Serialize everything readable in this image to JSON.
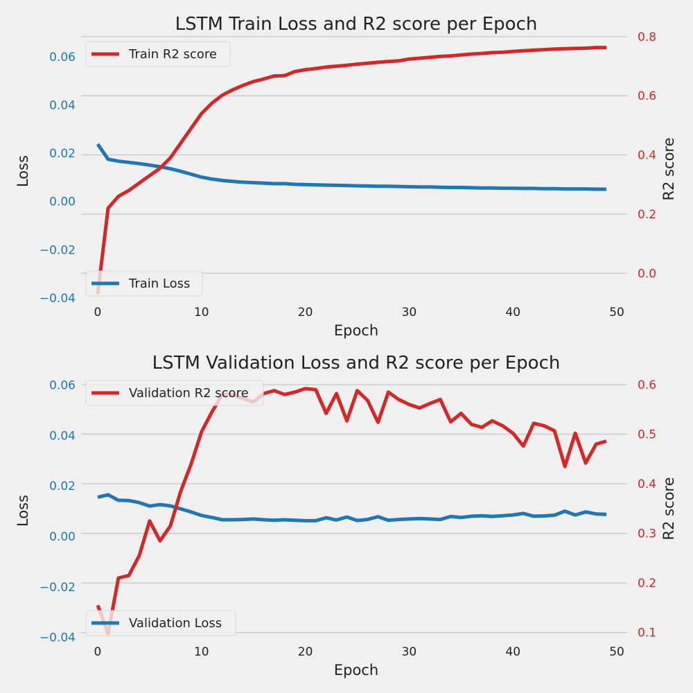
{
  "colors": {
    "background": "#f0f0f0",
    "grid": "#cbcbcb",
    "loss": "#1f77b4",
    "r2": "#d62728",
    "text": "#222222"
  },
  "chart_data": [
    {
      "type": "line",
      "title": "LSTM Train Loss and R2 score per Epoch",
      "xlabel": "Epoch",
      "ylabel_left": "Loss",
      "ylabel_right": "R2 score",
      "xlim": [
        -1.6,
        51
      ],
      "ylim_left": [
        -0.042,
        0.072
      ],
      "ylim_right": [
        -0.1,
        0.83
      ],
      "x_ticks": [
        0,
        10,
        20,
        30,
        40,
        50
      ],
      "y_ticks_left": [
        -0.04,
        -0.02,
        0.0,
        0.02,
        0.04,
        0.06
      ],
      "y_ticks_left_labels": [
        "−0.04",
        "−0.02",
        "0.00",
        "0.02",
        "0.04",
        "0.06"
      ],
      "y_ticks_right": [
        0.0,
        0.2,
        0.4,
        0.6,
        0.8
      ],
      "y_ticks_right_labels": [
        "0.0",
        "0.2",
        "0.4",
        "0.6",
        "0.8"
      ],
      "grid": "right-axis",
      "x": [
        0,
        1,
        2,
        3,
        4,
        5,
        6,
        7,
        8,
        9,
        10,
        11,
        12,
        13,
        14,
        15,
        16,
        17,
        18,
        19,
        20,
        21,
        22,
        23,
        24,
        25,
        26,
        27,
        28,
        29,
        30,
        31,
        32,
        33,
        34,
        35,
        36,
        37,
        38,
        39,
        40,
        41,
        42,
        43,
        44,
        45,
        46,
        47,
        48,
        49
      ],
      "series": [
        {
          "name": "Train Loss",
          "axis": "left",
          "legend": "lower-left",
          "values": [
            0.0238,
            0.0175,
            0.0167,
            0.0162,
            0.0157,
            0.0151,
            0.0144,
            0.0136,
            0.0125,
            0.0113,
            0.0101,
            0.0093,
            0.0087,
            0.0083,
            0.008,
            0.0078,
            0.0076,
            0.0074,
            0.0074,
            0.0071,
            0.007,
            0.0069,
            0.0068,
            0.0067,
            0.0066,
            0.0065,
            0.0064,
            0.0063,
            0.0063,
            0.0062,
            0.0061,
            0.006,
            0.006,
            0.0059,
            0.0058,
            0.0058,
            0.0057,
            0.0056,
            0.0056,
            0.0055,
            0.0055,
            0.0054,
            0.0054,
            0.0053,
            0.0053,
            0.0052,
            0.0052,
            0.0052,
            0.0051,
            0.0051
          ]
        },
        {
          "name": "Train R2 score",
          "axis": "right",
          "legend": "upper-left",
          "values": [
            -0.07,
            0.22,
            0.26,
            0.28,
            0.305,
            0.33,
            0.355,
            0.39,
            0.44,
            0.49,
            0.54,
            0.575,
            0.602,
            0.62,
            0.635,
            0.648,
            0.657,
            0.667,
            0.668,
            0.682,
            0.688,
            0.692,
            0.697,
            0.7,
            0.703,
            0.707,
            0.71,
            0.713,
            0.716,
            0.718,
            0.724,
            0.727,
            0.73,
            0.733,
            0.735,
            0.738,
            0.741,
            0.743,
            0.746,
            0.747,
            0.75,
            0.752,
            0.754,
            0.756,
            0.758,
            0.759,
            0.76,
            0.761,
            0.763,
            0.763
          ]
        }
      ]
    },
    {
      "type": "line",
      "title": "LSTM Validation Loss and R2 score per Epoch",
      "xlabel": "Epoch",
      "ylabel_left": "Loss",
      "ylabel_right": "R2 score",
      "xlim": [
        -1.6,
        51
      ],
      "ylim_left": [
        -0.042,
        0.067
      ],
      "ylim_right": [
        0.08,
        0.635
      ],
      "x_ticks": [
        0,
        10,
        20,
        30,
        40,
        50
      ],
      "y_ticks_left": [
        -0.04,
        -0.02,
        0.0,
        0.02,
        0.04,
        0.06
      ],
      "y_ticks_left_labels": [
        "−0.04",
        "−0.02",
        "0.00",
        "0.02",
        "0.04",
        "0.06"
      ],
      "y_ticks_right": [
        0.1,
        0.2,
        0.3,
        0.4,
        0.5,
        0.6
      ],
      "y_ticks_right_labels": [
        "0.1",
        "0.2",
        "0.3",
        "0.4",
        "0.5",
        "0.6"
      ],
      "grid": "right-axis",
      "x": [
        0,
        1,
        2,
        3,
        4,
        5,
        6,
        7,
        8,
        9,
        10,
        11,
        12,
        13,
        14,
        15,
        16,
        17,
        18,
        19,
        20,
        21,
        22,
        23,
        24,
        25,
        26,
        27,
        28,
        29,
        30,
        31,
        32,
        33,
        34,
        35,
        36,
        37,
        38,
        39,
        40,
        41,
        42,
        43,
        44,
        45,
        46,
        47,
        48,
        49
      ],
      "series": [
        {
          "name": "Validation Loss",
          "axis": "left",
          "legend": "lower-left",
          "values": [
            0.0155,
            0.0165,
            0.0143,
            0.0142,
            0.0134,
            0.012,
            0.0126,
            0.0121,
            0.0109,
            0.0097,
            0.0083,
            0.0075,
            0.0066,
            0.0066,
            0.0067,
            0.0069,
            0.0066,
            0.0064,
            0.0066,
            0.0064,
            0.0062,
            0.0062,
            0.0074,
            0.0065,
            0.0077,
            0.0063,
            0.0067,
            0.0078,
            0.0064,
            0.0067,
            0.0069,
            0.0071,
            0.0069,
            0.0067,
            0.0079,
            0.0075,
            0.008,
            0.0082,
            0.0079,
            0.0082,
            0.0085,
            0.0091,
            0.008,
            0.0081,
            0.0084,
            0.01,
            0.0085,
            0.0097,
            0.0089,
            0.0087
          ]
        },
        {
          "name": "Validation R2 score",
          "axis": "right",
          "legend": "upper-left",
          "values": [
            0.155,
            0.098,
            0.21,
            0.215,
            0.255,
            0.325,
            0.285,
            0.315,
            0.385,
            0.44,
            0.505,
            0.545,
            0.58,
            0.58,
            0.572,
            0.565,
            0.582,
            0.588,
            0.58,
            0.585,
            0.592,
            0.59,
            0.542,
            0.582,
            0.527,
            0.588,
            0.568,
            0.524,
            0.585,
            0.57,
            0.56,
            0.553,
            0.562,
            0.57,
            0.525,
            0.542,
            0.52,
            0.514,
            0.527,
            0.517,
            0.502,
            0.476,
            0.522,
            0.517,
            0.507,
            0.435,
            0.502,
            0.442,
            0.48,
            0.486
          ]
        }
      ]
    }
  ]
}
